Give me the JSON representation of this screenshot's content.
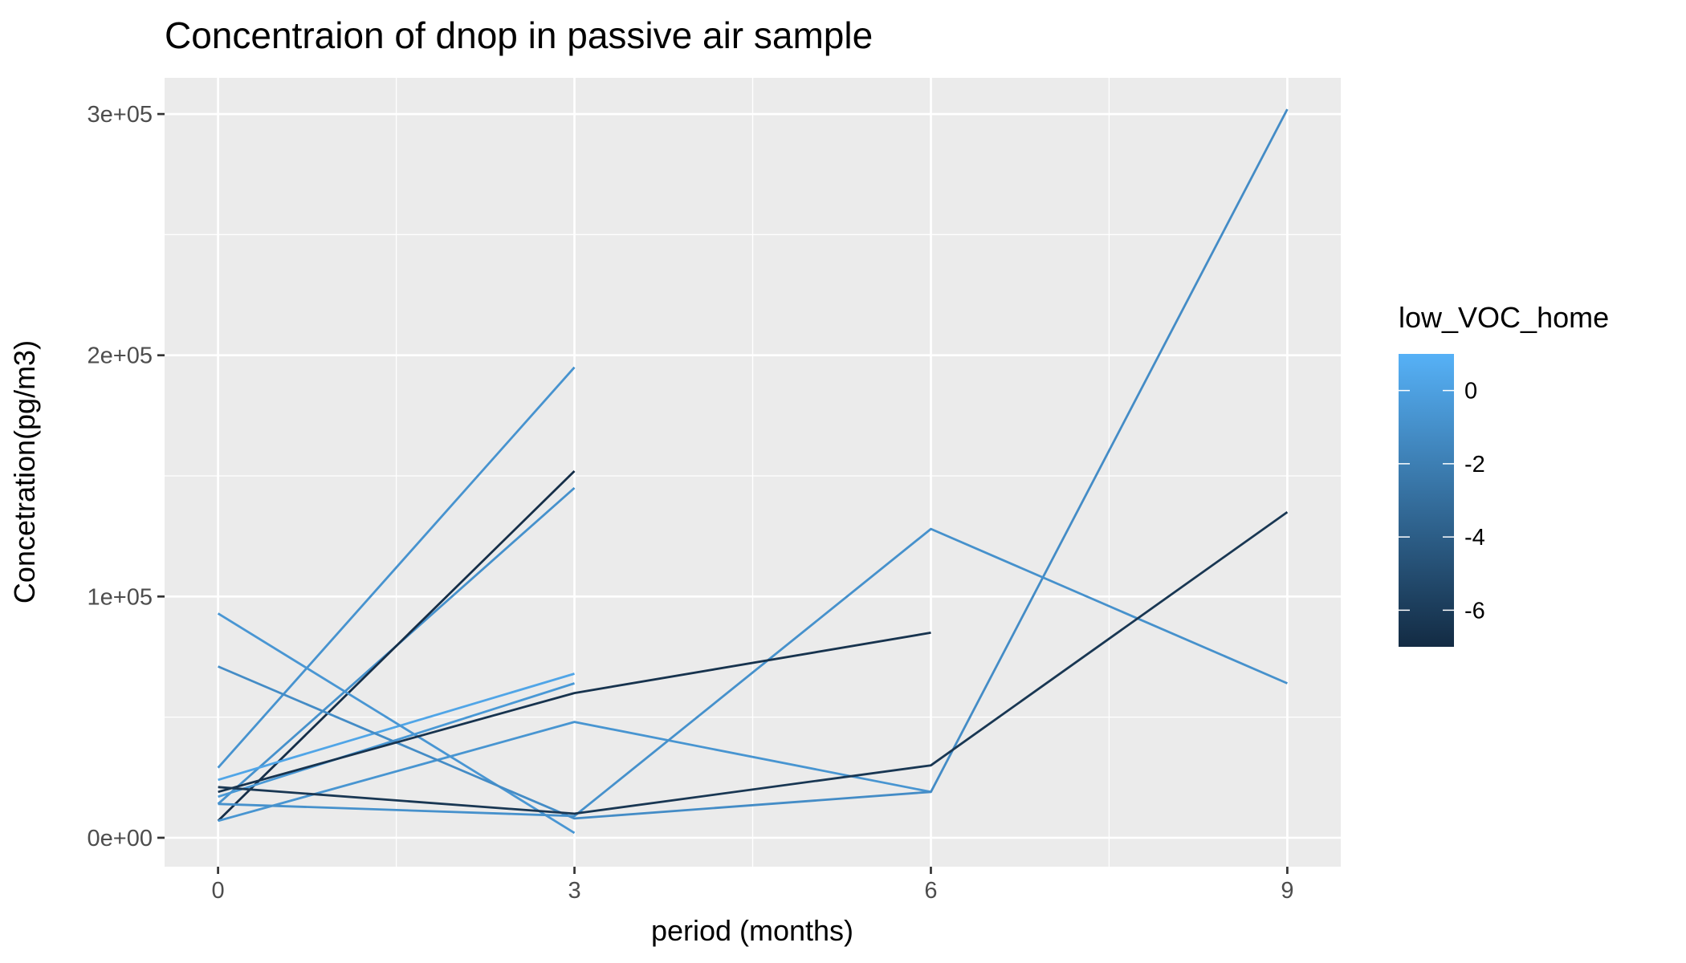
{
  "chart_data": {
    "type": "line",
    "title": "Concentraion of dnop in passive air sample",
    "xlabel": "period (months)",
    "ylabel": "Concetration(pg/m3)",
    "xlim": [
      -0.45,
      9.45
    ],
    "ylim": [
      -12000,
      315000
    ],
    "x_ticks": [
      0,
      3,
      6,
      9
    ],
    "x_tick_labels": [
      "0",
      "3",
      "6",
      "9"
    ],
    "y_ticks": [
      0,
      100000,
      200000,
      300000
    ],
    "y_tick_labels": [
      "0e+00",
      "1e+05",
      "2e+05",
      "3e+05"
    ],
    "grid": true,
    "legend_position": "right",
    "color_scale": {
      "title": "low_VOC_home",
      "min": -7,
      "max": 1,
      "low_color": "#132B43",
      "high_color": "#56B1F7",
      "tick_values": [
        0,
        -2,
        -4,
        -6
      ],
      "tick_labels": [
        "0",
        "-2",
        "-4",
        "-6"
      ]
    },
    "series": [
      {
        "color_value": -0.8,
        "x": [
          0,
          3
        ],
        "y": [
          29000,
          195000
        ]
      },
      {
        "color_value": -0.9,
        "x": [
          0,
          3
        ],
        "y": [
          14000,
          145000
        ]
      },
      {
        "color_value": -6.8,
        "x": [
          0,
          3
        ],
        "y": [
          7000,
          152000
        ]
      },
      {
        "color_value": 0.3,
        "x": [
          0,
          3
        ],
        "y": [
          24000,
          68000
        ]
      },
      {
        "color_value": -0.5,
        "x": [
          0,
          3
        ],
        "y": [
          17000,
          64000
        ]
      },
      {
        "color_value": -0.7,
        "x": [
          0,
          3,
          6
        ],
        "y": [
          7000,
          48000,
          19000
        ]
      },
      {
        "color_value": -0.6,
        "x": [
          0,
          3
        ],
        "y": [
          93000,
          2000
        ]
      },
      {
        "color_value": -1.2,
        "x": [
          0,
          3,
          6,
          9
        ],
        "y": [
          71000,
          8000,
          19000,
          302000
        ]
      },
      {
        "color_value": -0.9,
        "x": [
          0,
          3,
          6,
          9
        ],
        "y": [
          14000,
          9000,
          128000,
          64000
        ]
      },
      {
        "color_value": -6.5,
        "x": [
          0,
          3,
          6
        ],
        "y": [
          19000,
          60000,
          85000
        ]
      },
      {
        "color_value": -6.3,
        "x": [
          0,
          3,
          6,
          9
        ],
        "y": [
          21000,
          10000,
          30000,
          135000
        ]
      }
    ]
  }
}
